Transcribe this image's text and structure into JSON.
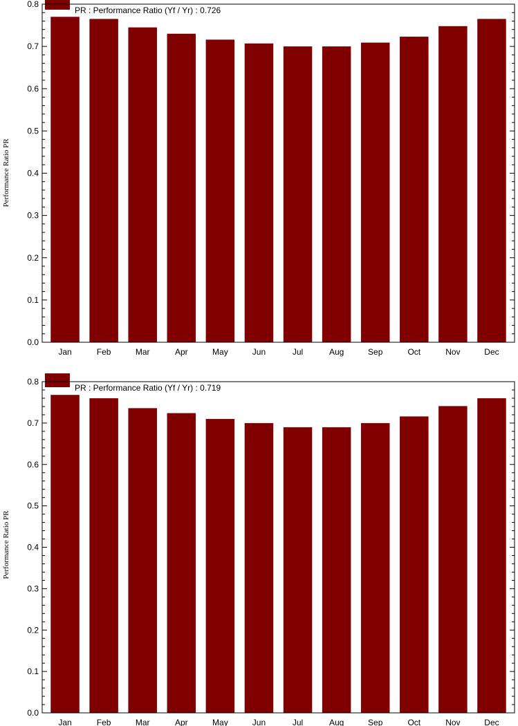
{
  "chart_data": [
    {
      "type": "bar",
      "legend": "PR : Performance Ratio (Yf / Yr) :  0.726",
      "ylabel": "Performance Ratio PR",
      "categories": [
        "Jan",
        "Feb",
        "Mar",
        "Apr",
        "May",
        "Jun",
        "Jul",
        "Aug",
        "Sep",
        "Oct",
        "Nov",
        "Dec"
      ],
      "values": [
        0.77,
        0.765,
        0.745,
        0.73,
        0.716,
        0.707,
        0.7,
        0.7,
        0.709,
        0.723,
        0.748,
        0.765
      ],
      "ylim": [
        0,
        0.8
      ],
      "yticks": [
        "0.0",
        "0.1",
        "0.2",
        "0.3",
        "0.4",
        "0.5",
        "0.6",
        "0.7",
        "0.8"
      ],
      "bar_color": "#800000",
      "legend_placement": "top-left"
    },
    {
      "type": "bar",
      "legend": "PR : Performance Ratio (Yf / Yr) :  0.719",
      "ylabel": "Performance Ratio PR",
      "categories": [
        "Jan",
        "Feb",
        "Mar",
        "Apr",
        "May",
        "Jun",
        "Jul",
        "Aug",
        "Sep",
        "Oct",
        "Nov",
        "Dec"
      ],
      "values": [
        0.768,
        0.76,
        0.736,
        0.724,
        0.71,
        0.7,
        0.69,
        0.69,
        0.7,
        0.716,
        0.741,
        0.76
      ],
      "ylim": [
        0,
        0.8
      ],
      "yticks": [
        "0.0",
        "0.1",
        "0.2",
        "0.3",
        "0.4",
        "0.5",
        "0.6",
        "0.7",
        "0.8"
      ],
      "bar_color": "#800000",
      "legend_placement": "top-left"
    }
  ]
}
